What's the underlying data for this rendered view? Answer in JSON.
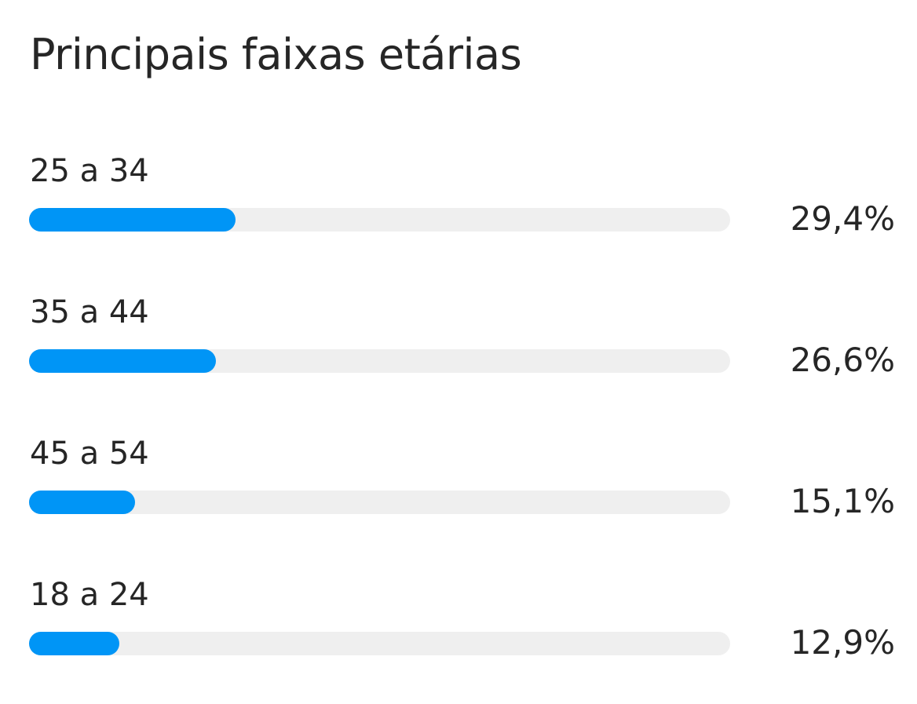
{
  "title": "Principais faixas etárias",
  "colors": {
    "bar_fill": "#0095f6",
    "bar_track": "#efefef",
    "text": "#262626"
  },
  "chart_data": {
    "type": "bar",
    "orientation": "horizontal",
    "title": "Principais faixas etárias",
    "categories": [
      "25 a 34",
      "35 a 44",
      "45 a 54",
      "18 a 24"
    ],
    "values": [
      29.4,
      26.6,
      15.1,
      12.9
    ],
    "value_labels": [
      "29,4%",
      "26,6%",
      "15,1%",
      "12,9%"
    ],
    "unit": "%",
    "grid": false,
    "legend": "none"
  }
}
